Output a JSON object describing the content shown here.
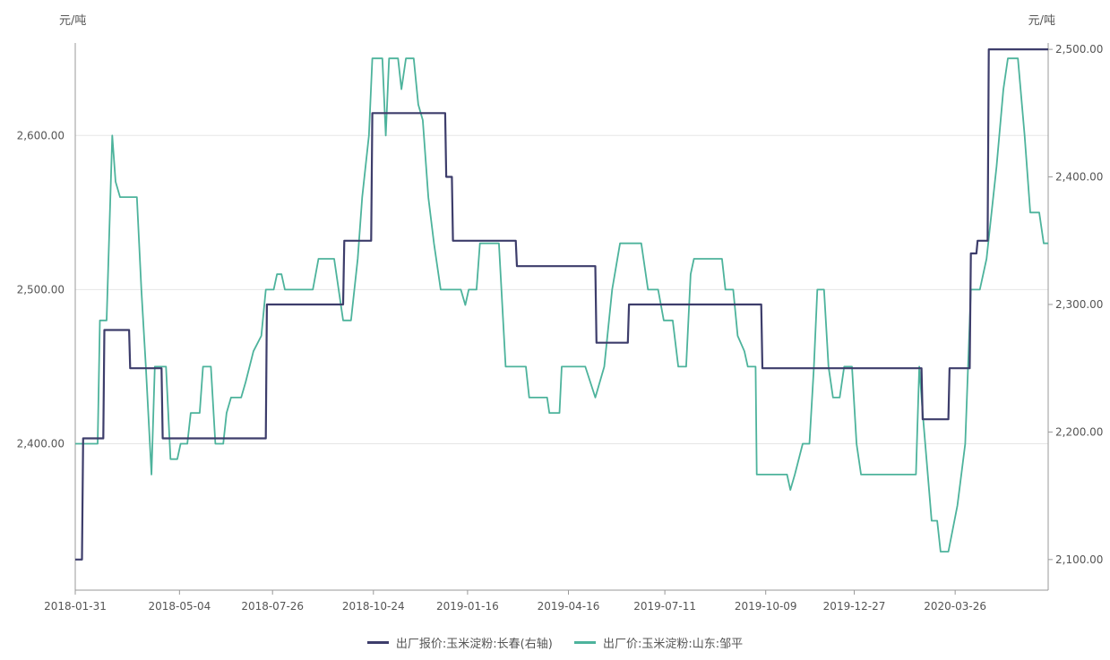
{
  "chart_data": {
    "type": "line",
    "left_unit": "元/吨",
    "right_unit": "元/吨",
    "x_tick_labels": [
      "2018-01-31",
      "2018-05-04",
      "2018-07-26",
      "2018-10-24",
      "2019-01-16",
      "2019-04-16",
      "2019-07-11",
      "2019-10-09",
      "2019-12-27",
      "2020-03-26"
    ],
    "left_axis": {
      "ticks": [
        "2,400.00",
        "2,500.00",
        "2,600.00"
      ],
      "tick_values": [
        2400,
        2500,
        2600
      ],
      "range": [
        2305,
        2660
      ]
    },
    "right_axis": {
      "ticks": [
        "2,100.00",
        "2,200.00",
        "2,300.00",
        "2,400.00",
        "2,500.00"
      ],
      "tick_values": [
        2100,
        2200,
        2300,
        2400,
        2500
      ],
      "range": [
        2076,
        2505
      ]
    },
    "grid": "horizontal",
    "legend_position": "bottom",
    "series": [
      {
        "name": "出厂报价:玉米淀粉:长春(右轴)",
        "axis": "right",
        "color": "#3d3d6b",
        "points": [
          [
            "2018-01-31",
            2100
          ],
          [
            "2018-02-06",
            2100
          ],
          [
            "2018-02-07",
            2195
          ],
          [
            "2018-02-25",
            2195
          ],
          [
            "2018-02-26",
            2280
          ],
          [
            "2018-03-20",
            2280
          ],
          [
            "2018-03-21",
            2250
          ],
          [
            "2018-04-18",
            2250
          ],
          [
            "2018-04-19",
            2195
          ],
          [
            "2018-07-20",
            2195
          ],
          [
            "2018-07-21",
            2300
          ],
          [
            "2018-09-27",
            2300
          ],
          [
            "2018-09-28",
            2350
          ],
          [
            "2018-10-22",
            2350
          ],
          [
            "2018-10-23",
            2450
          ],
          [
            "2018-12-27",
            2450
          ],
          [
            "2018-12-28",
            2400
          ],
          [
            "2019-01-02",
            2400
          ],
          [
            "2019-01-03",
            2350
          ],
          [
            "2019-02-28",
            2350
          ],
          [
            "2019-03-01",
            2330
          ],
          [
            "2019-05-10",
            2330
          ],
          [
            "2019-05-11",
            2270
          ],
          [
            "2019-06-08",
            2270
          ],
          [
            "2019-06-09",
            2300
          ],
          [
            "2019-10-05",
            2300
          ],
          [
            "2019-10-06",
            2250
          ],
          [
            "2020-02-25",
            2250
          ],
          [
            "2020-02-26",
            2210
          ],
          [
            "2020-03-20",
            2210
          ],
          [
            "2020-03-21",
            2250
          ],
          [
            "2020-04-08",
            2250
          ],
          [
            "2020-04-09",
            2340
          ],
          [
            "2020-04-14",
            2340
          ],
          [
            "2020-04-15",
            2350
          ],
          [
            "2020-04-24",
            2350
          ],
          [
            "2020-04-25",
            2500
          ],
          [
            "2020-06-17",
            2500
          ]
        ]
      },
      {
        "name": "出厂价:玉米淀粉:山东:邹平",
        "axis": "left",
        "color": "#4db39c",
        "points": [
          [
            "2018-01-31",
            2400
          ],
          [
            "2018-02-20",
            2400
          ],
          [
            "2018-02-22",
            2480
          ],
          [
            "2018-02-28",
            2480
          ],
          [
            "2018-03-05",
            2600
          ],
          [
            "2018-03-08",
            2570
          ],
          [
            "2018-03-12",
            2560
          ],
          [
            "2018-03-27",
            2560
          ],
          [
            "2018-03-31",
            2500
          ],
          [
            "2018-04-04",
            2450
          ],
          [
            "2018-04-09",
            2380
          ],
          [
            "2018-04-12",
            2450
          ],
          [
            "2018-04-22",
            2450
          ],
          [
            "2018-04-26",
            2390
          ],
          [
            "2018-05-02",
            2390
          ],
          [
            "2018-05-05",
            2400
          ],
          [
            "2018-05-11",
            2400
          ],
          [
            "2018-05-14",
            2420
          ],
          [
            "2018-05-22",
            2420
          ],
          [
            "2018-05-25",
            2450
          ],
          [
            "2018-06-01",
            2450
          ],
          [
            "2018-06-05",
            2400
          ],
          [
            "2018-06-12",
            2400
          ],
          [
            "2018-06-15",
            2420
          ],
          [
            "2018-06-19",
            2430
          ],
          [
            "2018-06-28",
            2430
          ],
          [
            "2018-07-02",
            2440
          ],
          [
            "2018-07-09",
            2460
          ],
          [
            "2018-07-16",
            2470
          ],
          [
            "2018-07-20",
            2500
          ],
          [
            "2018-07-27",
            2500
          ],
          [
            "2018-07-30",
            2510
          ],
          [
            "2018-08-03",
            2510
          ],
          [
            "2018-08-06",
            2500
          ],
          [
            "2018-08-31",
            2500
          ],
          [
            "2018-09-05",
            2520
          ],
          [
            "2018-09-19",
            2520
          ],
          [
            "2018-09-23",
            2500
          ],
          [
            "2018-09-27",
            2480
          ],
          [
            "2018-10-04",
            2480
          ],
          [
            "2018-10-10",
            2520
          ],
          [
            "2018-10-14",
            2560
          ],
          [
            "2018-10-20",
            2600
          ],
          [
            "2018-10-23",
            2650
          ],
          [
            "2018-11-01",
            2650
          ],
          [
            "2018-11-04",
            2600
          ],
          [
            "2018-11-07",
            2650
          ],
          [
            "2018-11-15",
            2650
          ],
          [
            "2018-11-18",
            2630
          ],
          [
            "2018-11-22",
            2650
          ],
          [
            "2018-11-29",
            2650
          ],
          [
            "2018-12-03",
            2620
          ],
          [
            "2018-12-07",
            2610
          ],
          [
            "2018-12-12",
            2560
          ],
          [
            "2018-12-17",
            2530
          ],
          [
            "2018-12-23",
            2500
          ],
          [
            "2019-01-10",
            2500
          ],
          [
            "2019-01-14",
            2490
          ],
          [
            "2019-01-17",
            2500
          ],
          [
            "2019-01-24",
            2500
          ],
          [
            "2019-01-27",
            2530
          ],
          [
            "2019-02-13",
            2530
          ],
          [
            "2019-02-19",
            2450
          ],
          [
            "2019-03-09",
            2450
          ],
          [
            "2019-03-12",
            2430
          ],
          [
            "2019-03-28",
            2430
          ],
          [
            "2019-03-30",
            2420
          ],
          [
            "2019-04-08",
            2420
          ],
          [
            "2019-04-10",
            2450
          ],
          [
            "2019-05-01",
            2450
          ],
          [
            "2019-05-10",
            2430
          ],
          [
            "2019-05-18",
            2450
          ],
          [
            "2019-05-25",
            2500
          ],
          [
            "2019-06-01",
            2530
          ],
          [
            "2019-06-20",
            2530
          ],
          [
            "2019-06-26",
            2500
          ],
          [
            "2019-07-05",
            2500
          ],
          [
            "2019-07-10",
            2480
          ],
          [
            "2019-07-18",
            2480
          ],
          [
            "2019-07-23",
            2450
          ],
          [
            "2019-07-30",
            2450
          ],
          [
            "2019-08-03",
            2510
          ],
          [
            "2019-08-06",
            2520
          ],
          [
            "2019-08-31",
            2520
          ],
          [
            "2019-09-03",
            2500
          ],
          [
            "2019-09-10",
            2500
          ],
          [
            "2019-09-14",
            2470
          ],
          [
            "2019-09-20",
            2460
          ],
          [
            "2019-09-23",
            2450
          ],
          [
            "2019-09-30",
            2450
          ],
          [
            "2019-10-01",
            2380
          ],
          [
            "2019-10-28",
            2380
          ],
          [
            "2019-10-31",
            2370
          ],
          [
            "2019-11-04",
            2380
          ],
          [
            "2019-11-11",
            2400
          ],
          [
            "2019-11-17",
            2400
          ],
          [
            "2019-11-21",
            2450
          ],
          [
            "2019-11-24",
            2500
          ],
          [
            "2019-11-30",
            2500
          ],
          [
            "2019-12-04",
            2450
          ],
          [
            "2019-12-08",
            2430
          ],
          [
            "2019-12-14",
            2430
          ],
          [
            "2019-12-18",
            2450
          ],
          [
            "2019-12-25",
            2450
          ],
          [
            "2019-12-29",
            2400
          ],
          [
            "2020-01-02",
            2380
          ],
          [
            "2020-02-10",
            2380
          ],
          [
            "2020-02-20",
            2380
          ],
          [
            "2020-02-23",
            2450
          ],
          [
            "2020-02-26",
            2420
          ],
          [
            "2020-03-05",
            2350
          ],
          [
            "2020-03-10",
            2350
          ],
          [
            "2020-03-13",
            2330
          ],
          [
            "2020-03-20",
            2330
          ],
          [
            "2020-03-28",
            2360
          ],
          [
            "2020-04-04",
            2400
          ],
          [
            "2020-04-09",
            2500
          ],
          [
            "2020-04-17",
            2500
          ],
          [
            "2020-04-23",
            2520
          ],
          [
            "2020-05-02",
            2580
          ],
          [
            "2020-05-08",
            2630
          ],
          [
            "2020-05-12",
            2650
          ],
          [
            "2020-05-21",
            2650
          ],
          [
            "2020-05-27",
            2600
          ],
          [
            "2020-06-01",
            2550
          ],
          [
            "2020-06-09",
            2550
          ],
          [
            "2020-06-13",
            2530
          ],
          [
            "2020-06-17",
            2530
          ]
        ]
      }
    ]
  }
}
